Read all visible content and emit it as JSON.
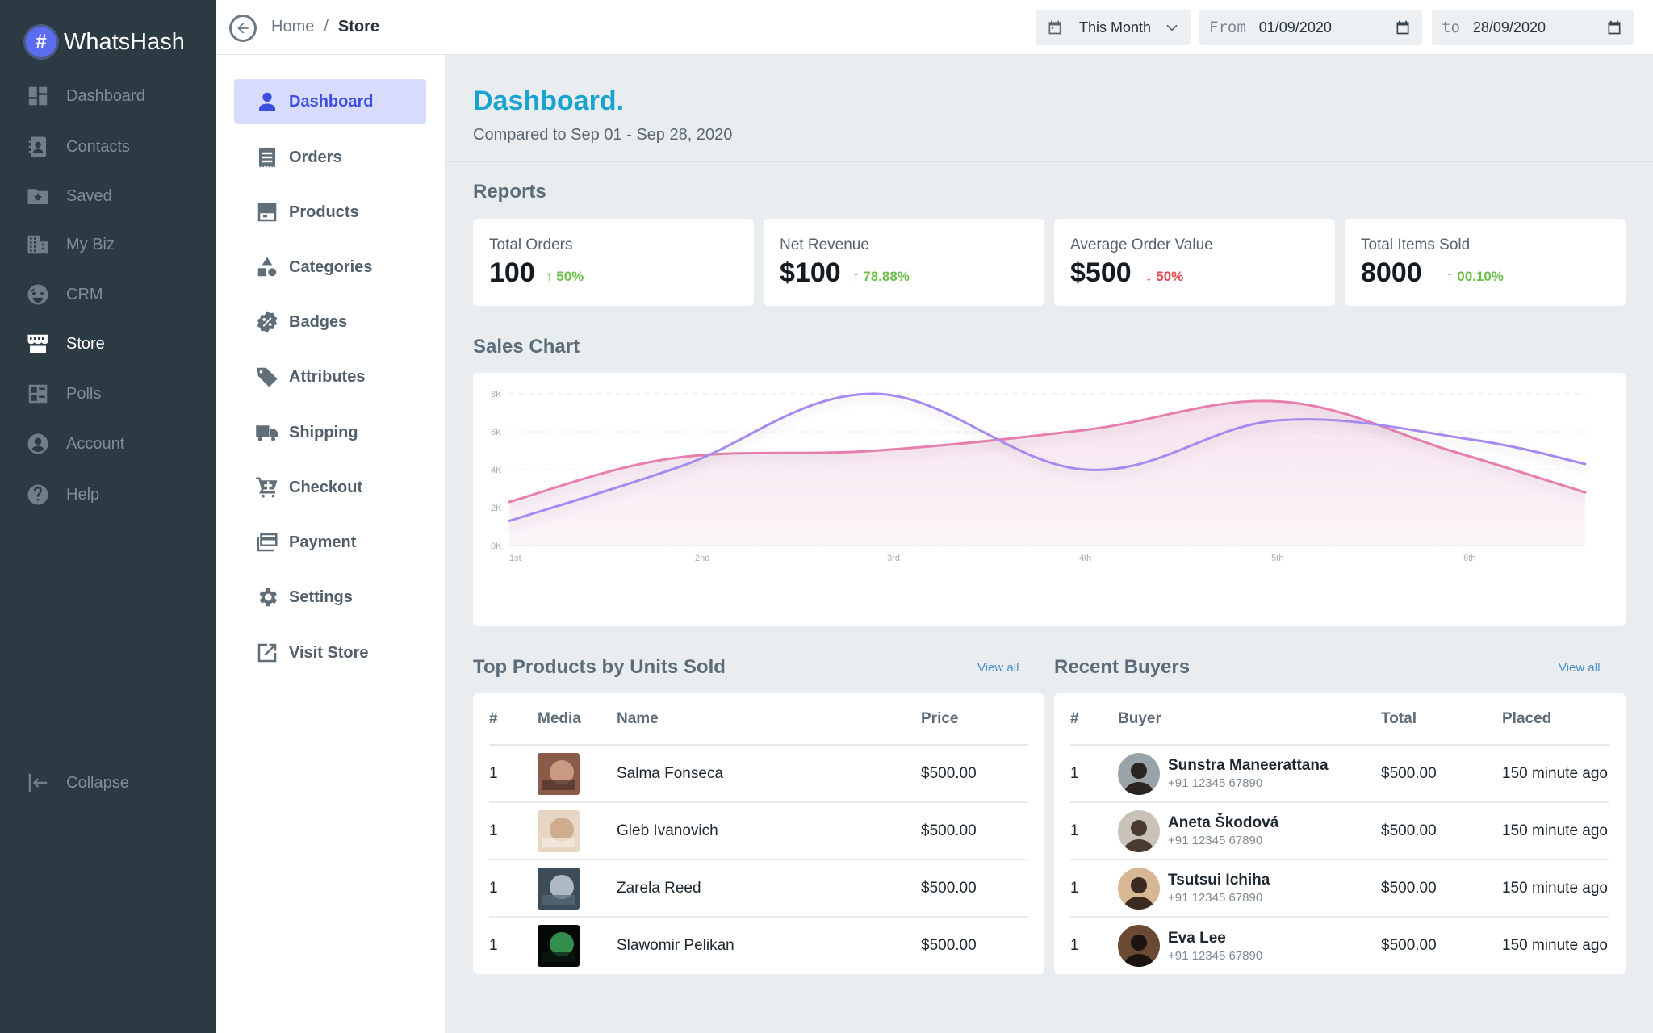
{
  "app": {
    "name": "WhatsHash",
    "logo_glyph": "#"
  },
  "sidebar": {
    "items": [
      {
        "label": "Dashboard",
        "icon": "dashboard-icon"
      },
      {
        "label": "Contacts",
        "icon": "contacts-icon"
      },
      {
        "label": "Saved",
        "icon": "saved-icon"
      },
      {
        "label": "My Biz",
        "icon": "business-icon"
      },
      {
        "label": "CRM",
        "icon": "crm-icon"
      },
      {
        "label": "Store",
        "icon": "store-icon",
        "active": true
      },
      {
        "label": "Polls",
        "icon": "polls-icon"
      },
      {
        "label": "Account",
        "icon": "account-icon"
      },
      {
        "label": "Help",
        "icon": "help-icon"
      }
    ],
    "collapse_label": "Collapse"
  },
  "subnav": {
    "items": [
      {
        "label": "Dashboard",
        "icon": "user-icon",
        "active": true
      },
      {
        "label": "Orders",
        "icon": "orders-icon"
      },
      {
        "label": "Products",
        "icon": "products-icon"
      },
      {
        "label": "Categories",
        "icon": "categories-icon"
      },
      {
        "label": "Badges",
        "icon": "badge-icon"
      },
      {
        "label": "Attributes",
        "icon": "tag-icon"
      },
      {
        "label": "Shipping",
        "icon": "truck-icon"
      },
      {
        "label": "Checkout",
        "icon": "cart-icon"
      },
      {
        "label": "Payment",
        "icon": "payment-icon"
      },
      {
        "label": "Settings",
        "icon": "gear-icon"
      },
      {
        "label": "Visit Store",
        "icon": "external-link-icon"
      }
    ]
  },
  "topbar": {
    "breadcrumb": {
      "home": "Home",
      "separator": "/",
      "current": "Store"
    },
    "period": "This Month",
    "from_label": "From",
    "from_value": "01/09/2020",
    "to_label": "to",
    "to_value": "28/09/2020"
  },
  "dashboard": {
    "title": "Dashboard.",
    "compare_text": "Compared to Sep 01 - Sep 28, 2020",
    "reports_title": "Reports",
    "kpis": [
      {
        "label": "Total Orders",
        "value": "100",
        "change": "50%",
        "direction": "up"
      },
      {
        "label": "Net Revenue",
        "value": "$100",
        "change": "78.88%",
        "direction": "up"
      },
      {
        "label": "Average Order Value",
        "value": "$500",
        "change": "50%",
        "direction": "down"
      },
      {
        "label": "Total Items Sold",
        "value": "8000",
        "change": "00.10%",
        "direction": "up"
      }
    ],
    "sales_chart_title": "Sales Chart"
  },
  "chart_data": {
    "type": "area",
    "categories": [
      "1st",
      "2nd",
      "3rd",
      "4th",
      "5th",
      "6th",
      ""
    ],
    "y_ticks": [
      "0K",
      "2K",
      "4K",
      "6K",
      "8K"
    ],
    "ylim": [
      0,
      8000
    ],
    "series": [
      {
        "color": "#e77fae",
        "fill": true,
        "x": [
          0,
          0.85,
          1.9,
          3,
          4,
          4.9,
          5.6
        ],
        "values": [
          2300,
          4600,
          5000,
          6100,
          7600,
          5000,
          2800
        ]
      },
      {
        "color": "#a68af0",
        "fill": false,
        "x": [
          0,
          0.9,
          1.9,
          3,
          4,
          5,
          5.6
        ],
        "values": [
          1300,
          4200,
          8000,
          4000,
          6600,
          5600,
          4300
        ]
      }
    ],
    "grid": true
  },
  "top_products": {
    "title": "Top Products by Units Sold",
    "view_all": "View all",
    "headers": {
      "num": "#",
      "media": "Media",
      "name": "Name",
      "price": "Price"
    },
    "rows": [
      {
        "num": "1",
        "name": "Salma Fonseca",
        "price": "$500.00",
        "thumb": [
          "#8a5a4a",
          "#d9a98f",
          "#4a3028"
        ]
      },
      {
        "num": "1",
        "name": "Gleb Ivanovich",
        "price": "$500.00",
        "thumb": [
          "#e8d6c4",
          "#c9a182",
          "#f4ece2"
        ]
      },
      {
        "num": "1",
        "name": "Zarela Reed",
        "price": "$500.00",
        "thumb": [
          "#3c4c58",
          "#c9d3dc",
          "#5a6a76"
        ]
      },
      {
        "num": "1",
        "name": "Slawomir Pelikan",
        "price": "$500.00",
        "thumb": [
          "#050a08",
          "#3fae5e",
          "#0d1a12"
        ]
      }
    ]
  },
  "recent_buyers": {
    "title": "Recent Buyers",
    "view_all": "View all",
    "headers": {
      "num": "#",
      "buyer": "Buyer",
      "total": "Total",
      "placed": "Placed"
    },
    "rows": [
      {
        "num": "1",
        "name": "Sunstra Maneerattana",
        "phone": "+91 12345 67890",
        "total": "$500.00",
        "placed": "150 minute ago",
        "avatar": [
          "#9aa3a8",
          "#2b2420"
        ]
      },
      {
        "num": "1",
        "name": "Aneta Škodová",
        "phone": "+91 12345 67890",
        "total": "$500.00",
        "placed": "150 minute ago",
        "avatar": [
          "#c9c2b8",
          "#4a3a30"
        ]
      },
      {
        "num": "1",
        "name": "Tsutsui Ichiha",
        "phone": "+91 12345 67890",
        "total": "$500.00",
        "placed": "150 minute ago",
        "avatar": [
          "#d8b894",
          "#3a2a20"
        ]
      },
      {
        "num": "1",
        "name": "Eva Lee",
        "phone": "+91 12345 67890",
        "total": "$500.00",
        "placed": "150 minute ago",
        "avatar": [
          "#6a4a34",
          "#1c1410"
        ]
      }
    ]
  }
}
